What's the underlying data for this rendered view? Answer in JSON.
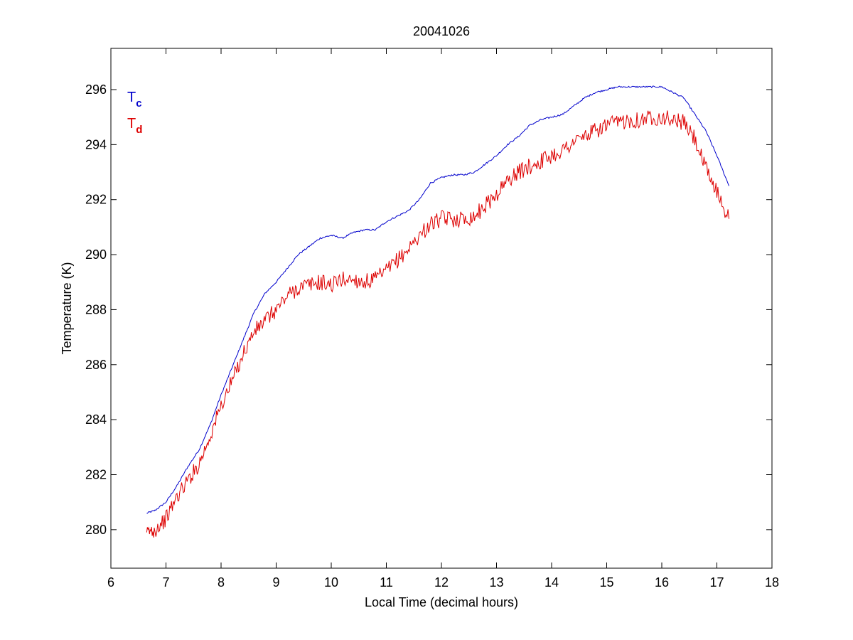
{
  "chart_data": {
    "type": "line",
    "title": "20041026",
    "xlabel": "Local Time (decimal hours)",
    "ylabel": "Temperature (K)",
    "xlim": [
      6,
      18
    ],
    "ylim": [
      278.6,
      297.5
    ],
    "xticks": [
      6,
      7,
      8,
      9,
      10,
      11,
      12,
      13,
      14,
      15,
      16,
      17,
      18
    ],
    "yticks": [
      280,
      282,
      284,
      286,
      288,
      290,
      292,
      294,
      296
    ],
    "grid": false,
    "legend": {
      "placement": "top-left",
      "entries": [
        {
          "main": "T",
          "sub": "c",
          "color": "#0000cc"
        },
        {
          "main": "T",
          "sub": "d",
          "color": "#dd0000"
        }
      ]
    },
    "series": [
      {
        "color": "#0000cc",
        "noise": 0.03,
        "x": [
          6.65,
          6.8,
          7.0,
          7.2,
          7.4,
          7.6,
          7.8,
          8.0,
          8.2,
          8.4,
          8.6,
          8.8,
          9.0,
          9.2,
          9.4,
          9.6,
          9.8,
          10.0,
          10.2,
          10.4,
          10.6,
          10.8,
          11.0,
          11.2,
          11.4,
          11.6,
          11.8,
          12.0,
          12.2,
          12.4,
          12.6,
          12.8,
          13.0,
          13.2,
          13.4,
          13.6,
          13.8,
          14.0,
          14.2,
          14.4,
          14.6,
          14.8,
          15.0,
          15.2,
          15.4,
          15.6,
          15.8,
          16.0,
          16.2,
          16.4,
          16.6,
          16.8,
          17.0,
          17.22
        ],
        "y": [
          280.6,
          280.7,
          281.0,
          281.6,
          282.3,
          282.9,
          283.8,
          284.9,
          285.9,
          286.9,
          287.9,
          288.6,
          289.0,
          289.5,
          290.0,
          290.3,
          290.6,
          290.7,
          290.6,
          290.8,
          290.9,
          290.9,
          291.2,
          291.4,
          291.6,
          292.0,
          292.6,
          292.8,
          292.9,
          292.9,
          293.0,
          293.3,
          293.6,
          294.0,
          294.3,
          294.7,
          294.9,
          295.0,
          295.1,
          295.4,
          295.7,
          295.9,
          296.0,
          296.1,
          296.1,
          296.1,
          296.1,
          296.1,
          295.9,
          295.7,
          295.1,
          294.5,
          293.6,
          292.5
        ]
      },
      {
        "color": "#dd0000",
        "noise": 0.3,
        "x": [
          6.65,
          6.8,
          7.0,
          7.2,
          7.4,
          7.6,
          7.8,
          8.0,
          8.2,
          8.4,
          8.6,
          8.8,
          9.0,
          9.2,
          9.4,
          9.6,
          9.8,
          10.0,
          10.2,
          10.4,
          10.6,
          10.8,
          11.0,
          11.2,
          11.4,
          11.6,
          11.8,
          12.0,
          12.2,
          12.4,
          12.6,
          12.8,
          13.0,
          13.2,
          13.4,
          13.6,
          13.8,
          14.0,
          14.2,
          14.4,
          14.6,
          14.8,
          15.0,
          15.2,
          15.4,
          15.6,
          15.8,
          16.0,
          16.2,
          16.4,
          16.6,
          16.8,
          17.0,
          17.22
        ],
        "y": [
          279.9,
          280.0,
          280.4,
          281.2,
          281.8,
          282.4,
          283.4,
          284.5,
          285.4,
          286.4,
          287.2,
          287.6,
          288.0,
          288.5,
          288.8,
          288.9,
          289.0,
          288.9,
          289.1,
          289.1,
          289.0,
          289.1,
          289.4,
          289.8,
          290.2,
          290.7,
          291.1,
          291.3,
          291.3,
          291.3,
          291.4,
          291.8,
          292.2,
          292.7,
          293.0,
          293.2,
          293.4,
          293.6,
          293.8,
          294.1,
          294.3,
          294.5,
          294.7,
          294.8,
          294.9,
          294.9,
          295.0,
          295.0,
          294.9,
          294.8,
          294.2,
          293.1,
          292.3,
          291.3
        ]
      }
    ]
  }
}
